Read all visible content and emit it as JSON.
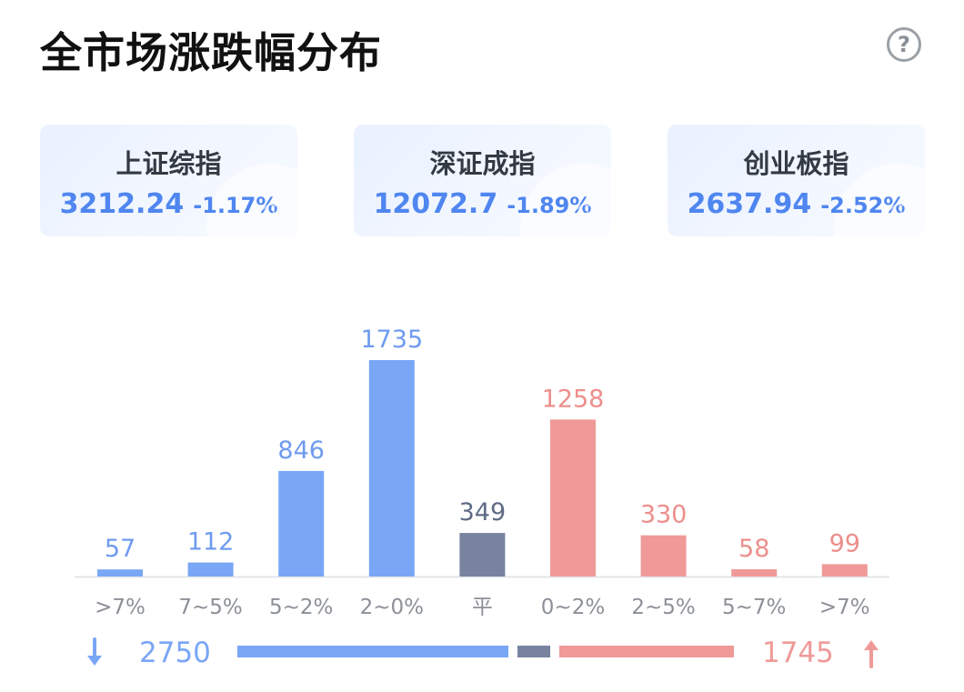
{
  "title": "全市场涨跌幅分布",
  "help_icon": "question-circle-icon",
  "help_symbol": "?",
  "indices": [
    {
      "name": "上证综指",
      "price": "3212.24",
      "change": "-1.17%"
    },
    {
      "name": "深证成指",
      "price": "12072.7",
      "change": "-1.89%"
    },
    {
      "name": "创业板指",
      "price": "2637.94",
      "change": "-2.52%"
    }
  ],
  "colors": {
    "down": "#7aa6f6",
    "flat": "#77839f",
    "up": "#ef9a98",
    "label_down": "#6f9bf0",
    "label_flat": "#5f6b85",
    "label_up": "#ec8f8c"
  },
  "chart_data": {
    "type": "bar",
    "categories": [
      ">7%",
      "7~5%",
      "5~2%",
      "2~0%",
      "平",
      "0~2%",
      "2~5%",
      "5~7%",
      ">7%"
    ],
    "values": [
      57,
      112,
      846,
      1735,
      349,
      1258,
      330,
      58,
      99
    ],
    "groups": [
      "down",
      "down",
      "down",
      "down",
      "flat",
      "up",
      "up",
      "up",
      "up"
    ],
    "ylim": [
      0,
      1735
    ]
  },
  "summary": {
    "down_total": "2750",
    "up_total": "1745",
    "flat_total": 349,
    "down_icon": "arrow-down-icon",
    "up_icon": "arrow-up-icon"
  }
}
